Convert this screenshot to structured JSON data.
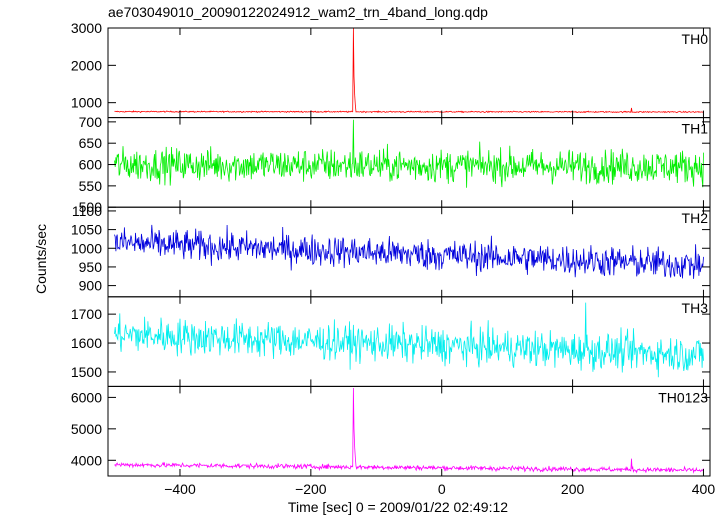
{
  "chart_data": {
    "type": "line",
    "title": "ae703049010_20090122024912_wam2_trn_4band_long.qdp",
    "xlabel": "Time [sec] 0 = 2009/01/22 02:49:12",
    "ylabel": "Counts/sec",
    "xlim": [
      -510,
      410
    ],
    "xticks": [
      -400,
      -200,
      0,
      200,
      400
    ],
    "panels": [
      {
        "name": "TH0",
        "color": "#ff0000",
        "ylim": [
          600,
          3000
        ],
        "yticks": [
          1000,
          2000,
          3000
        ],
        "baseline_start": 760,
        "baseline_end": 750,
        "noise": 12,
        "bursts": [
          {
            "x": -135,
            "y": 3000
          },
          {
            "x": -134,
            "y": 1700
          },
          {
            "x": -133,
            "y": 1200
          },
          {
            "x": -132,
            "y": 950
          },
          {
            "x": 290,
            "y": 860
          }
        ]
      },
      {
        "name": "TH1",
        "color": "#00ee00",
        "ylim": [
          500,
          710
        ],
        "yticks": [
          500,
          550,
          600,
          650,
          700
        ],
        "baseline_start": 600,
        "baseline_end": 595,
        "noise": 28,
        "bursts": [
          {
            "x": -135,
            "y": 705
          }
        ]
      },
      {
        "name": "TH2",
        "color": "#0000dd",
        "ylim": [
          870,
          1110
        ],
        "yticks": [
          900,
          950,
          1000,
          1050,
          1100
        ],
        "baseline_start": 1015,
        "baseline_end": 955,
        "noise": 30,
        "bursts": []
      },
      {
        "name": "TH3",
        "color": "#00eeee",
        "ylim": [
          1450,
          1760
        ],
        "yticks": [
          1500,
          1600,
          1700
        ],
        "baseline_start": 1630,
        "baseline_end": 1560,
        "noise": 45,
        "bursts": [
          {
            "x": 220,
            "y": 1740
          }
        ]
      },
      {
        "name": "TH0123",
        "color": "#ff00ff",
        "ylim": [
          3500,
          6350
        ],
        "yticks": [
          4000,
          5000,
          6000
        ],
        "baseline_start": 3860,
        "baseline_end": 3680,
        "noise": 55,
        "bursts": [
          {
            "x": -135,
            "y": 6300
          },
          {
            "x": -134,
            "y": 5000
          },
          {
            "x": -133,
            "y": 4400
          },
          {
            "x": -132,
            "y": 4100
          },
          {
            "x": 290,
            "y": 4050
          }
        ]
      }
    ]
  }
}
